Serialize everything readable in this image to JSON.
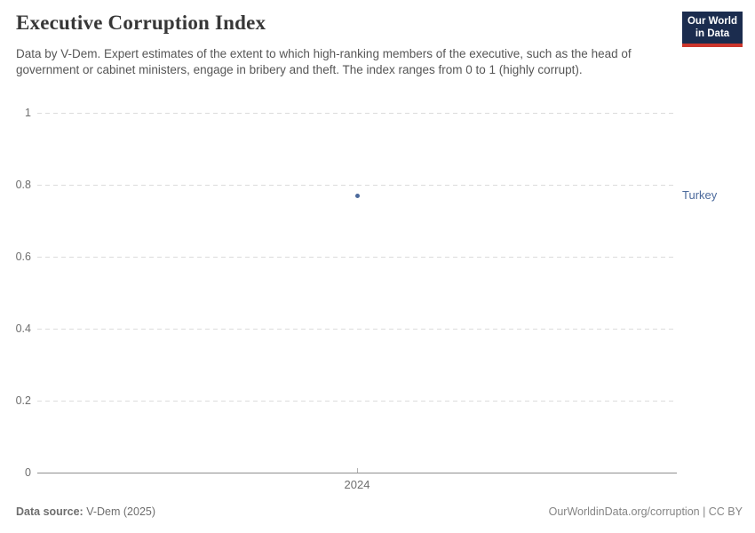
{
  "header": {
    "title": "Executive Corruption Index",
    "subtitle": "Data by V-Dem. Expert estimates of the extent to which high-ranking members of the executive, such as the head of government or cabinet ministers, engage in bribery and theft. The index ranges from 0 to 1 (highly corrupt).",
    "logo": {
      "line1": "Our World",
      "line2": "in Data",
      "bg_color": "#1b2c4e",
      "bar_color": "#cc362c"
    }
  },
  "chart_data": {
    "type": "scatter",
    "x": [
      2024
    ],
    "xtick_labels": [
      "2024"
    ],
    "series": [
      {
        "name": "Turkey",
        "values": [
          0.77
        ],
        "color": "#4C6A9C"
      }
    ],
    "title": "Executive Corruption Index",
    "xlabel": "",
    "ylabel": "",
    "ylim": [
      0,
      1
    ],
    "yticks": [
      0,
      0.2,
      0.4,
      0.6,
      0.8,
      1
    ],
    "ytick_labels": [
      "0",
      "0.2",
      "0.4",
      "0.6",
      "0.8",
      "1"
    ],
    "grid": "horizontal-dashed",
    "legend_position": "entity-label-right"
  },
  "footer": {
    "source_label": "Data source:",
    "source_value": " V-Dem (2025)",
    "attribution": "OurWorldinData.org/corruption | CC BY"
  },
  "colors": {
    "accent": "#4C6A9C",
    "grid": "#dcdcdc",
    "axis": "#8f8f8f",
    "text_muted": "#6e6e6e"
  }
}
